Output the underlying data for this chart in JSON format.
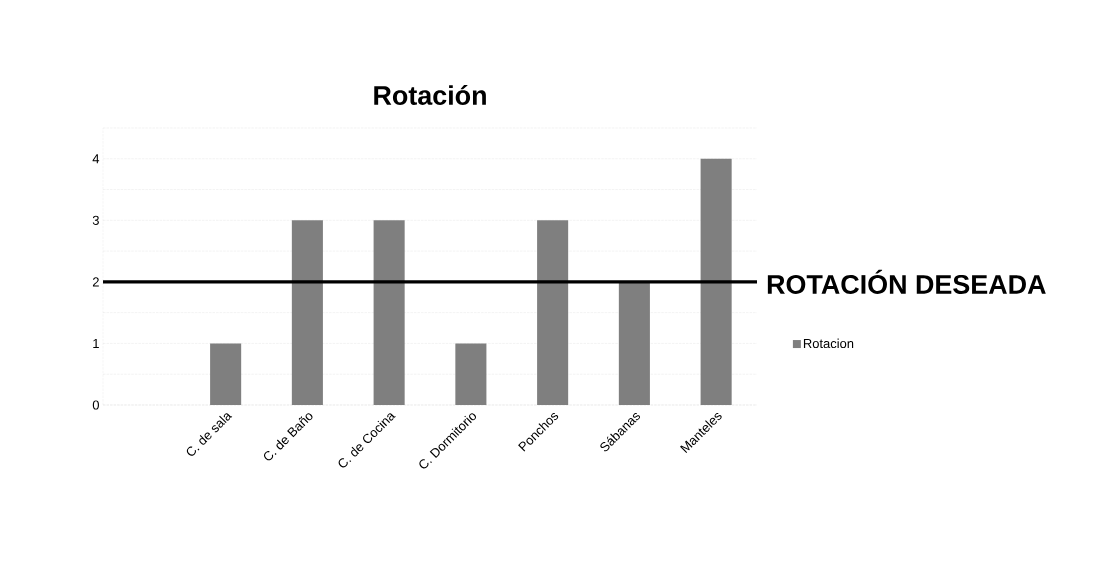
{
  "chart_data": {
    "type": "bar",
    "title": "Rotación",
    "categories": [
      "C. de sala",
      "C. de Baño",
      "C. de Cocina",
      "C. Dormitorio",
      "Ponchos",
      "Sábanas",
      "Manteles"
    ],
    "series": [
      {
        "name": "Rotacion",
        "color": "#7f7f7f",
        "values": [
          1,
          3,
          3,
          1,
          3,
          2,
          4
        ]
      }
    ],
    "ylim": [
      0,
      4.5
    ],
    "yticks": [
      0,
      {
        "value": 0.5,
        "label": null
      },
      1,
      {
        "value": 1.5,
        "label": null
      },
      2,
      {
        "value": 2.5,
        "label": null
      },
      3,
      {
        "value": 3.5,
        "label": null
      },
      4,
      {
        "value": 4.5,
        "label": null
      }
    ],
    "ref_lines": [
      {
        "axis": "y",
        "value": 2,
        "label": "ROTACIÓN DESEADA",
        "color": "#000000"
      }
    ],
    "grid": "y",
    "legend": "right"
  }
}
